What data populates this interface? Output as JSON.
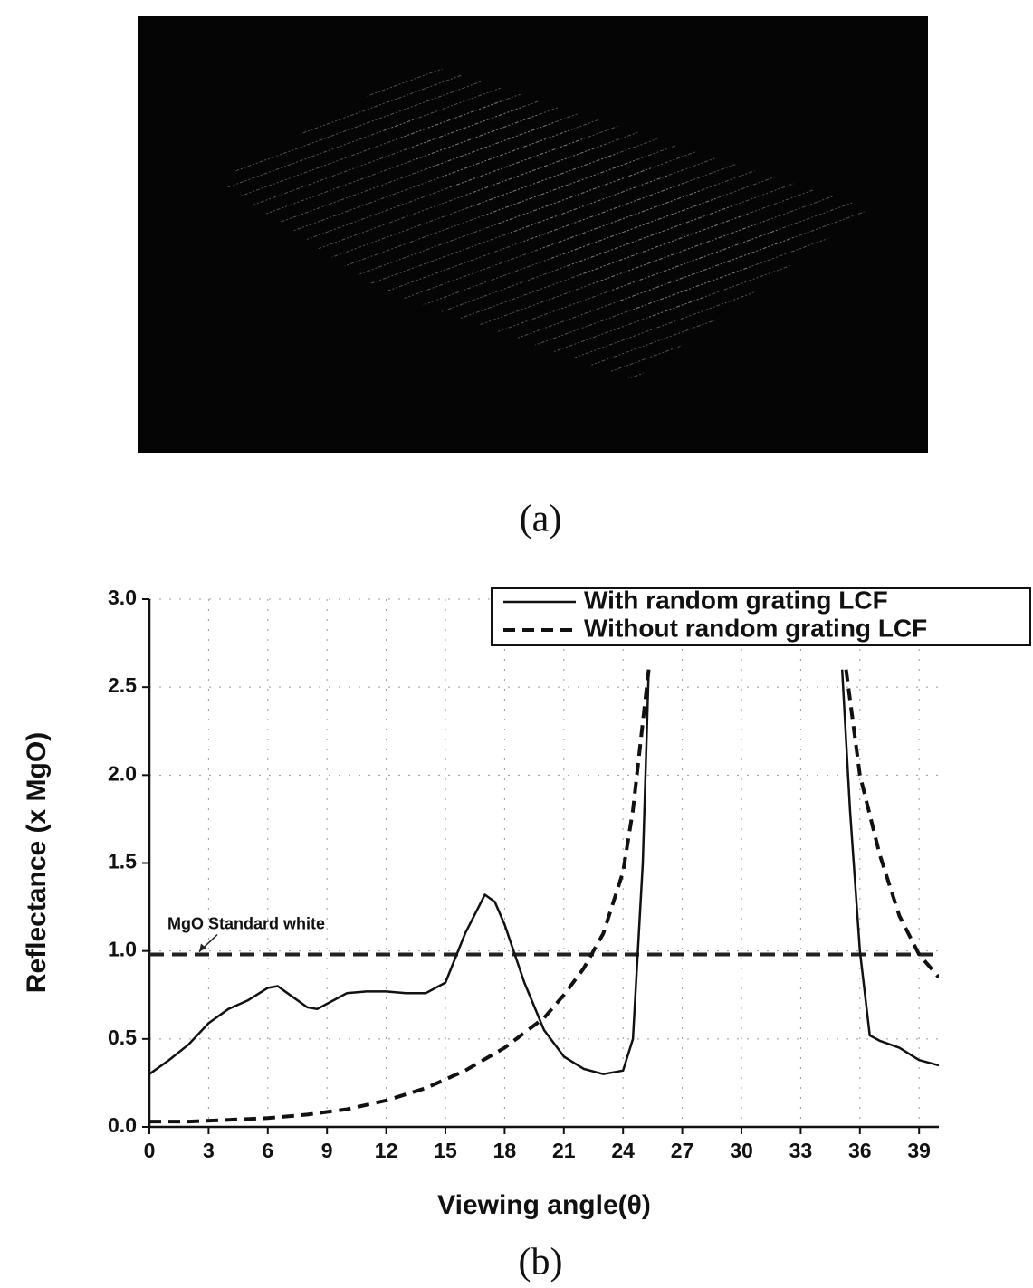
{
  "panel_a": {
    "caption": "(a)"
  },
  "chart_data": {
    "type": "line",
    "caption": "(b)",
    "x_label": "Viewing angle(θ)",
    "y_label": "Reflectance (x MgO)",
    "xlim": [
      0,
      40
    ],
    "ylim": [
      0,
      3
    ],
    "xticks": [
      0,
      3,
      6,
      9,
      12,
      15,
      18,
      21,
      24,
      27,
      30,
      33,
      36,
      39
    ],
    "yticks": [
      {
        "value": 0,
        "label": "0.0"
      },
      0.5,
      {
        "value": 1,
        "label": "1.0"
      },
      1.5,
      {
        "value": 2,
        "label": "2.0"
      },
      2.5,
      {
        "value": 3,
        "label": "3.0"
      }
    ],
    "grid": true,
    "legend": "upper right",
    "series": [
      {
        "name": "With random grating LCF",
        "color": "#111111",
        "style": "solid",
        "x": [
          0,
          1,
          2,
          3,
          4,
          5,
          6,
          6.5,
          7,
          8,
          8.5,
          9,
          10,
          11,
          12,
          13,
          14,
          15,
          16,
          17,
          17.5,
          18,
          19,
          20,
          21,
          22,
          23,
          24,
          24.5,
          25,
          25.3,
          30,
          35.1,
          35.5,
          36,
          36.5,
          37,
          38,
          39,
          40
        ],
        "values": [
          0.3,
          0.38,
          0.47,
          0.59,
          0.67,
          0.72,
          0.79,
          0.8,
          0.76,
          0.68,
          0.67,
          0.7,
          0.76,
          0.77,
          0.77,
          0.76,
          0.76,
          0.82,
          1.1,
          1.32,
          1.28,
          1.15,
          0.82,
          0.55,
          0.4,
          0.33,
          0.3,
          0.32,
          0.5,
          1.5,
          2.6,
          null,
          2.6,
          1.8,
          1.0,
          0.52,
          0.49,
          0.45,
          0.38,
          0.35
        ]
      },
      {
        "name": "Without random grating LCF",
        "color": "#111111",
        "style": "dashed",
        "x": [
          0,
          2,
          4,
          6,
          8,
          10,
          12,
          14,
          16,
          18,
          20,
          21,
          22,
          23,
          24,
          24.5,
          25,
          25.3,
          30,
          35.3,
          36,
          37,
          38,
          39,
          40
        ],
        "values": [
          0.03,
          0.03,
          0.04,
          0.05,
          0.07,
          0.1,
          0.15,
          0.22,
          0.32,
          0.45,
          0.62,
          0.75,
          0.9,
          1.1,
          1.45,
          1.8,
          2.3,
          2.6,
          null,
          2.6,
          2.0,
          1.55,
          1.2,
          0.98,
          0.85
        ]
      }
    ],
    "annotations": [
      {
        "text": "MgO Standard white",
        "y": 0.98
      }
    ]
  }
}
